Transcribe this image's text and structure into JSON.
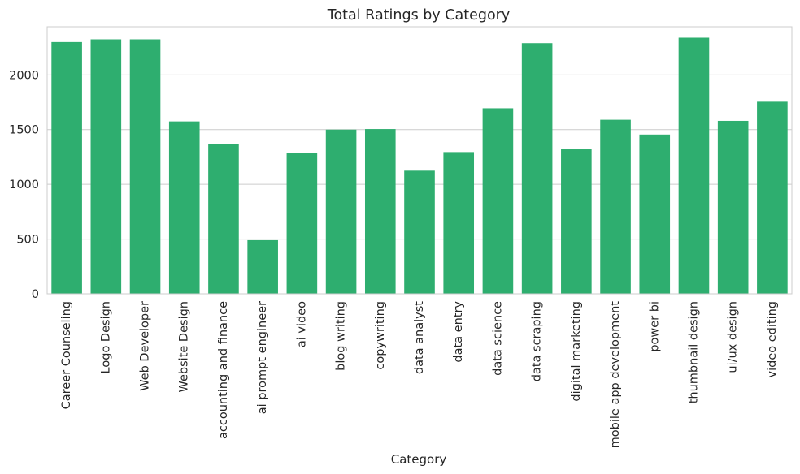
{
  "chart_data": {
    "type": "bar",
    "title": "Total Ratings by Category",
    "xlabel": "Category",
    "ylabel": "",
    "ylim": [
      0,
      2440
    ],
    "yticks": [
      0,
      500,
      1000,
      1500,
      2000
    ],
    "grid": "horizontal",
    "bar_color": "#2eae6f",
    "categories": [
      "Career Counseling",
      "Logo Design",
      "Web Developer",
      "Website Design",
      "accounting and finance",
      "ai prompt engineer",
      "ai video",
      "blog writing",
      "copywriting",
      "data analyst",
      "data entry",
      "data science",
      "data scraping",
      "digital marketing",
      "mobile app development",
      "power bi",
      "thumbnail design",
      "ui/ux design",
      "video editing"
    ],
    "values": [
      2300,
      2325,
      2325,
      1575,
      1365,
      490,
      1285,
      1500,
      1505,
      1125,
      1295,
      1695,
      2290,
      1320,
      1590,
      1455,
      2340,
      1580,
      1755
    ]
  }
}
